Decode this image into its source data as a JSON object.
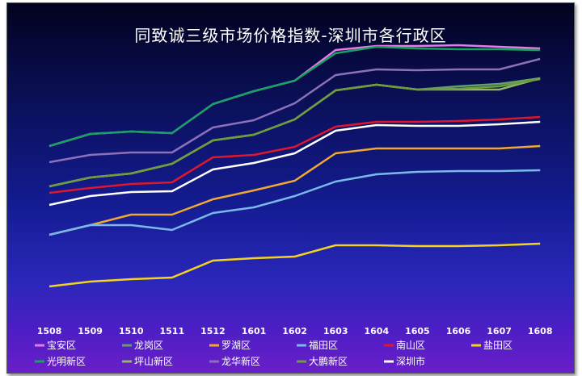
{
  "chart_data": {
    "type": "line",
    "title": "同致诚三级市场价格指数-深圳市各行政区",
    "xlabel": "",
    "ylabel": "",
    "categories": [
      "1508",
      "1509",
      "1510",
      "1511",
      "1512",
      "1601",
      "1602",
      "1603",
      "1604",
      "1605",
      "1606",
      "1607",
      "1608"
    ],
    "grid": false,
    "legend_position": "bottom",
    "series": [
      {
        "name": "宝安区",
        "color": "#e879e8",
        "values": [
          181,
          166,
          163,
          165,
          129,
          113,
          100,
          62,
          57,
          57,
          56,
          58,
          60
        ]
      },
      {
        "name": "龙岗区",
        "color": "#5fa36b",
        "values": [
          231,
          220,
          215,
          203,
          174,
          167,
          148,
          112,
          105,
          111,
          107,
          104,
          97
        ]
      },
      {
        "name": "罗湖区",
        "color": "#f0a830",
        "values": [
          291,
          279,
          266,
          266,
          247,
          236,
          224,
          190,
          184,
          184,
          184,
          184,
          181
        ]
      },
      {
        "name": "福田区",
        "color": "#79b9ea",
        "values": [
          291,
          279,
          279,
          285,
          264,
          257,
          243,
          225,
          216,
          213,
          212,
          212,
          211
        ]
      },
      {
        "name": "南山区",
        "color": "#e0162b",
        "values": [
          239,
          233,
          228,
          226,
          195,
          192,
          182,
          157,
          151,
          151,
          150,
          148,
          145
        ]
      },
      {
        "name": "盐田区",
        "color": "#f3d320",
        "values": [
          355,
          349,
          346,
          344,
          323,
          320,
          318,
          304,
          304,
          305,
          305,
          304,
          302
        ]
      },
      {
        "name": "光明新区",
        "color": "#15a263",
        "values": [
          181,
          166,
          163,
          165,
          129,
          113,
          100,
          66,
          58,
          60,
          61,
          61,
          62
        ]
      },
      {
        "name": "坪山新区",
        "color": "#92b661",
        "values": [
          231,
          220,
          215,
          203,
          174,
          167,
          148,
          112,
          105,
          111,
          111,
          111,
          97
        ]
      },
      {
        "name": "龙华新区",
        "color": "#8c70b8",
        "values": [
          201,
          192,
          189,
          189,
          158,
          149,
          128,
          93,
          86,
          87,
          86,
          86,
          73
        ]
      },
      {
        "name": "大鹏新区",
        "color": "#6f9c3c",
        "values": [
          231,
          220,
          215,
          203,
          174,
          167,
          148,
          112,
          105,
          111,
          110,
          107,
          98
        ]
      },
      {
        "name": "深圳市",
        "color": "#ffffff",
        "values": [
          254,
          243,
          238,
          237,
          210,
          202,
          190,
          162,
          155,
          156,
          156,
          154,
          151
        ]
      }
    ]
  }
}
